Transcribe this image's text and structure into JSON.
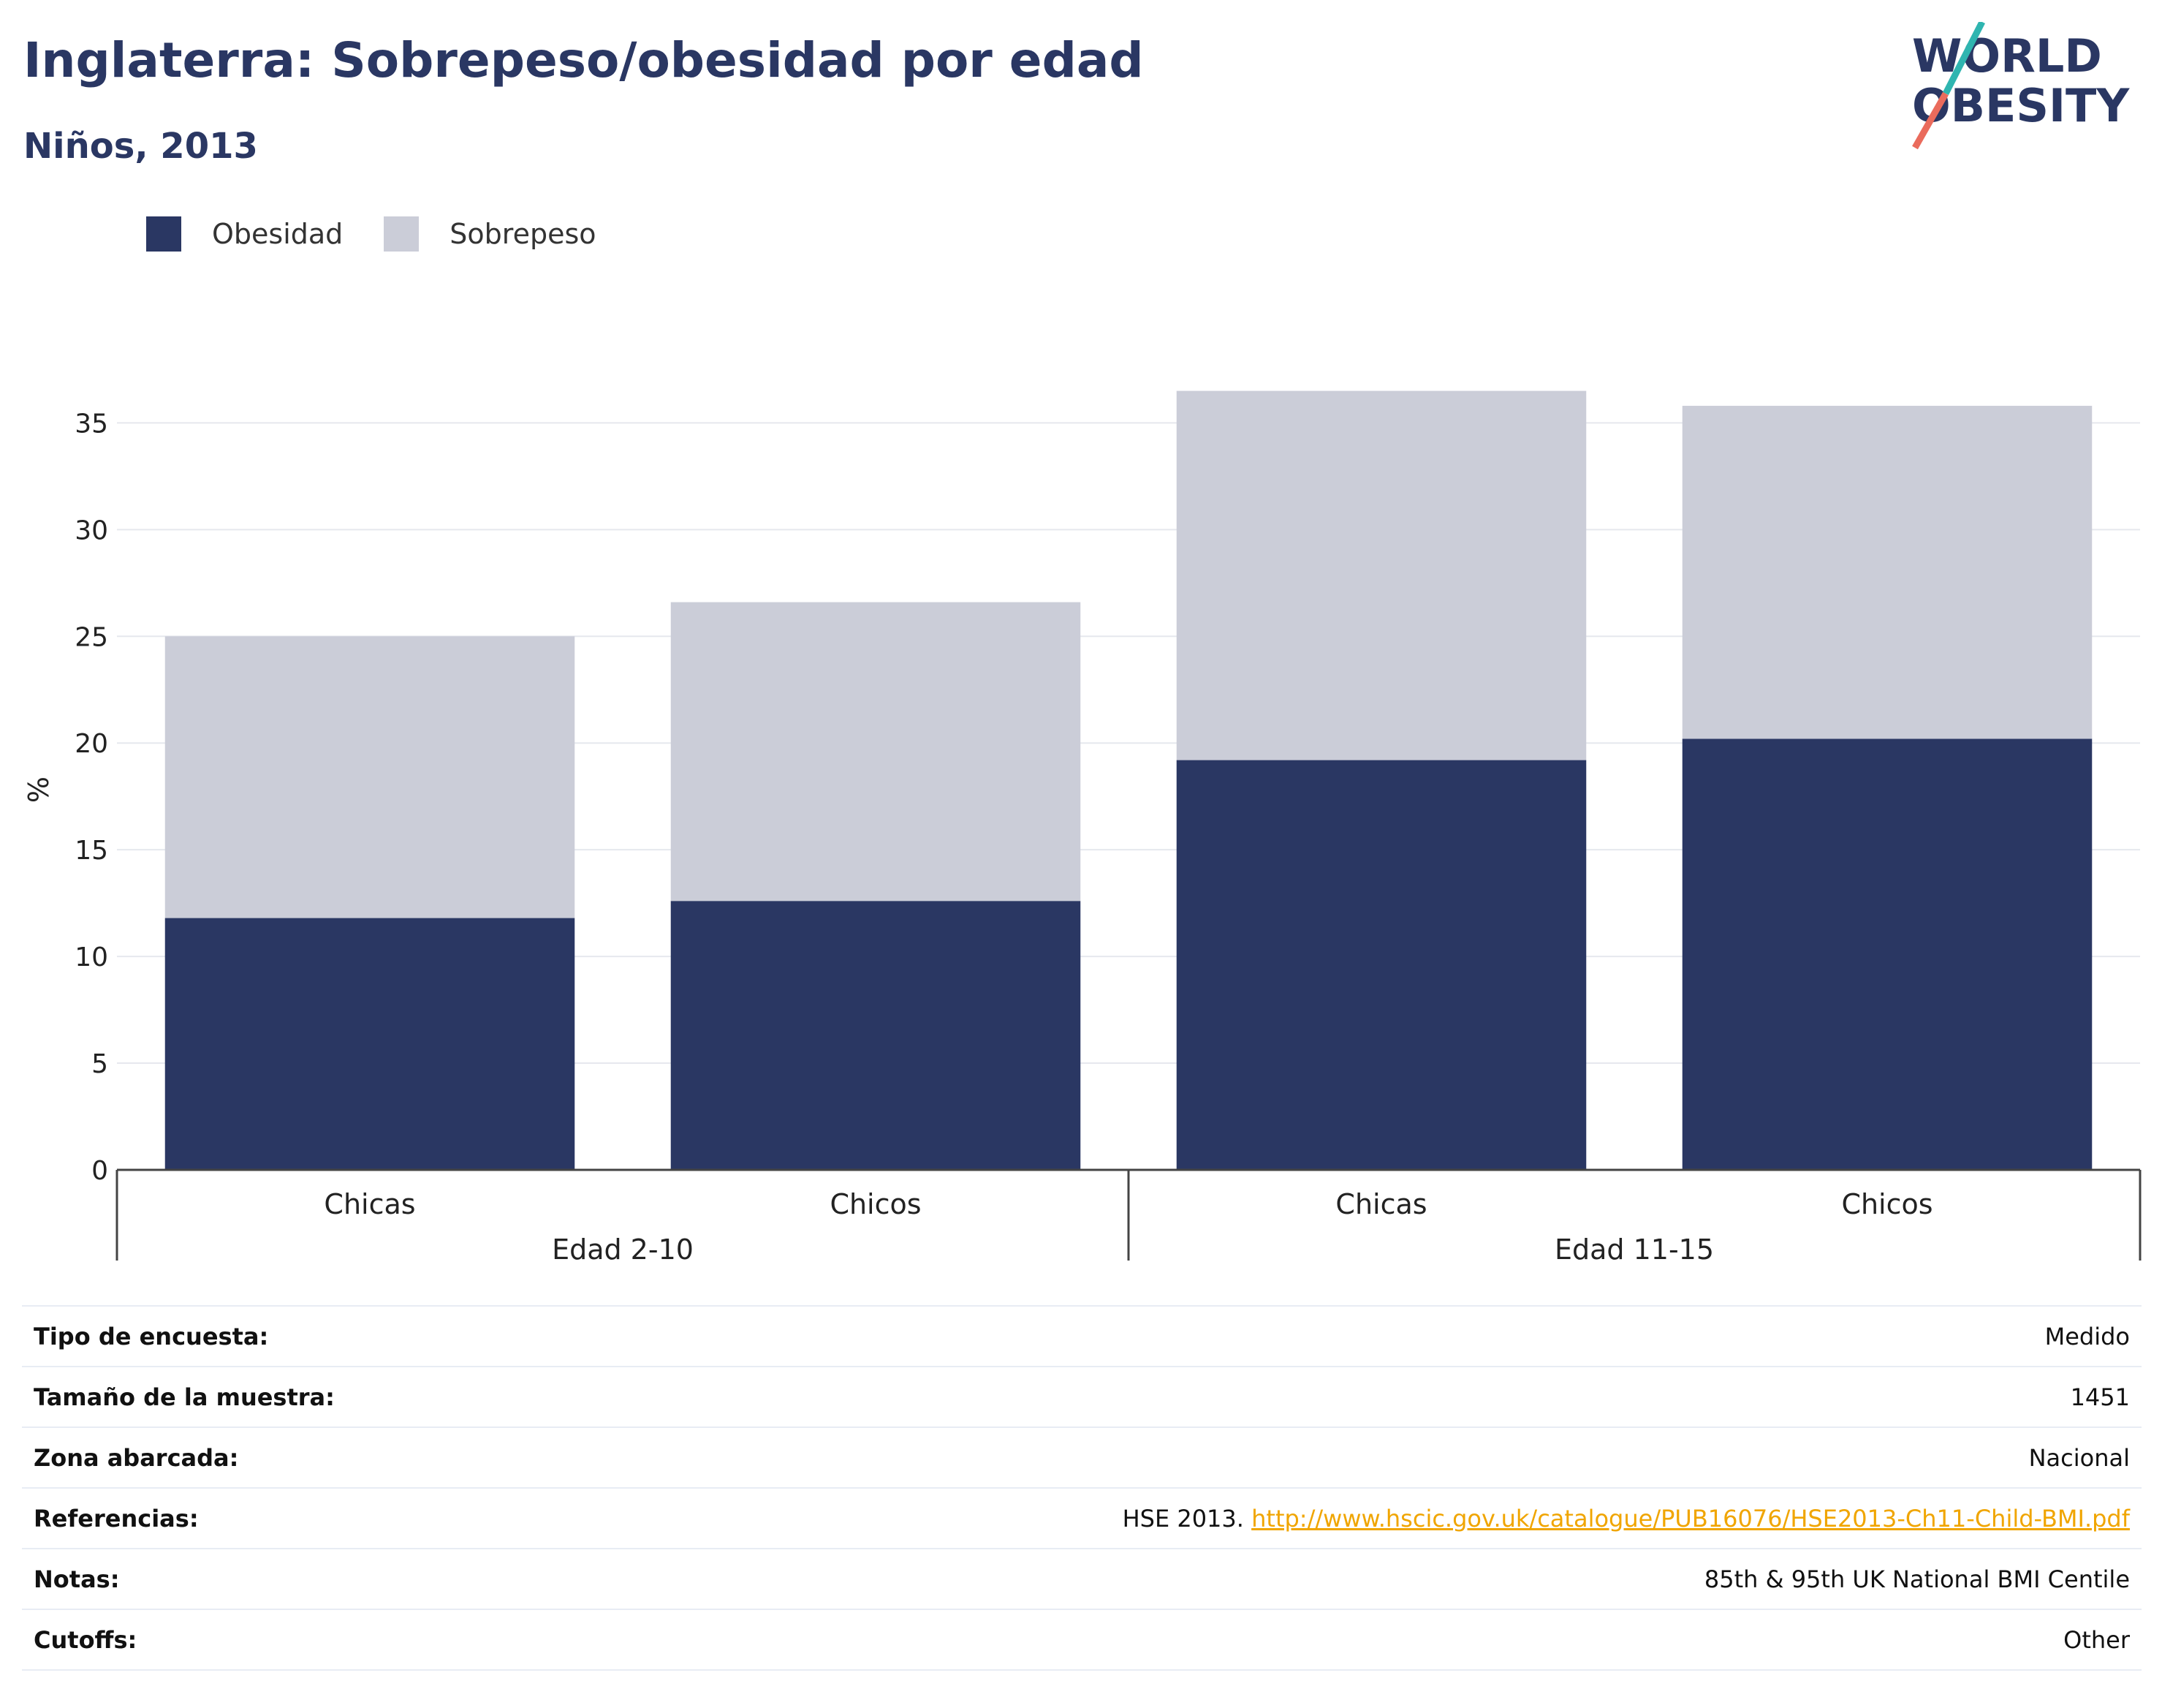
{
  "header": {
    "title": "Inglaterra: Sobrepeso/obesidad por edad",
    "subtitle": "Niños, 2013"
  },
  "logo": {
    "line1": "WORLD",
    "line2": "OBESITY"
  },
  "colors": {
    "obesity": "#2a3763",
    "overweight": "#cbcdd8",
    "link": "#f0a500",
    "logo_teal": "#2fb5b0",
    "logo_coral": "#ea6b5c"
  },
  "chart_data": {
    "type": "bar",
    "stacked": true,
    "ylabel": "%",
    "ylim": [
      0,
      37
    ],
    "yticks": [
      0,
      5,
      10,
      15,
      20,
      25,
      30,
      35
    ],
    "grid": true,
    "legend_position": "top-left",
    "categories": [
      "Chicas",
      "Chicos",
      "Chicas",
      "Chicos"
    ],
    "groups": [
      {
        "label": "Edad 2-10",
        "categories": [
          0,
          1
        ]
      },
      {
        "label": "Edad 11-15",
        "categories": [
          2,
          3
        ]
      }
    ],
    "series": [
      {
        "name": "Obesidad",
        "values": [
          11.8,
          12.6,
          19.2,
          20.2
        ]
      },
      {
        "name": "Sobrepeso",
        "values": [
          13.2,
          14.0,
          17.3,
          15.6
        ]
      }
    ]
  },
  "info": [
    {
      "key": "Tipo de encuesta:",
      "value": "Medido"
    },
    {
      "key": "Tamaño de la muestra:",
      "value": "1451"
    },
    {
      "key": "Zona abarcada:",
      "value": "Nacional"
    },
    {
      "key": "Referencias:",
      "value": "HSE 2013.",
      "link": "http://www.hscic.gov.uk/catalogue/PUB16076/HSE2013-Ch11-Child-BMI.pdf"
    },
    {
      "key": "Notas:",
      "value": "85th & 95th UK National BMI Centile"
    },
    {
      "key": "Cutoffs:",
      "value": "Other"
    }
  ]
}
